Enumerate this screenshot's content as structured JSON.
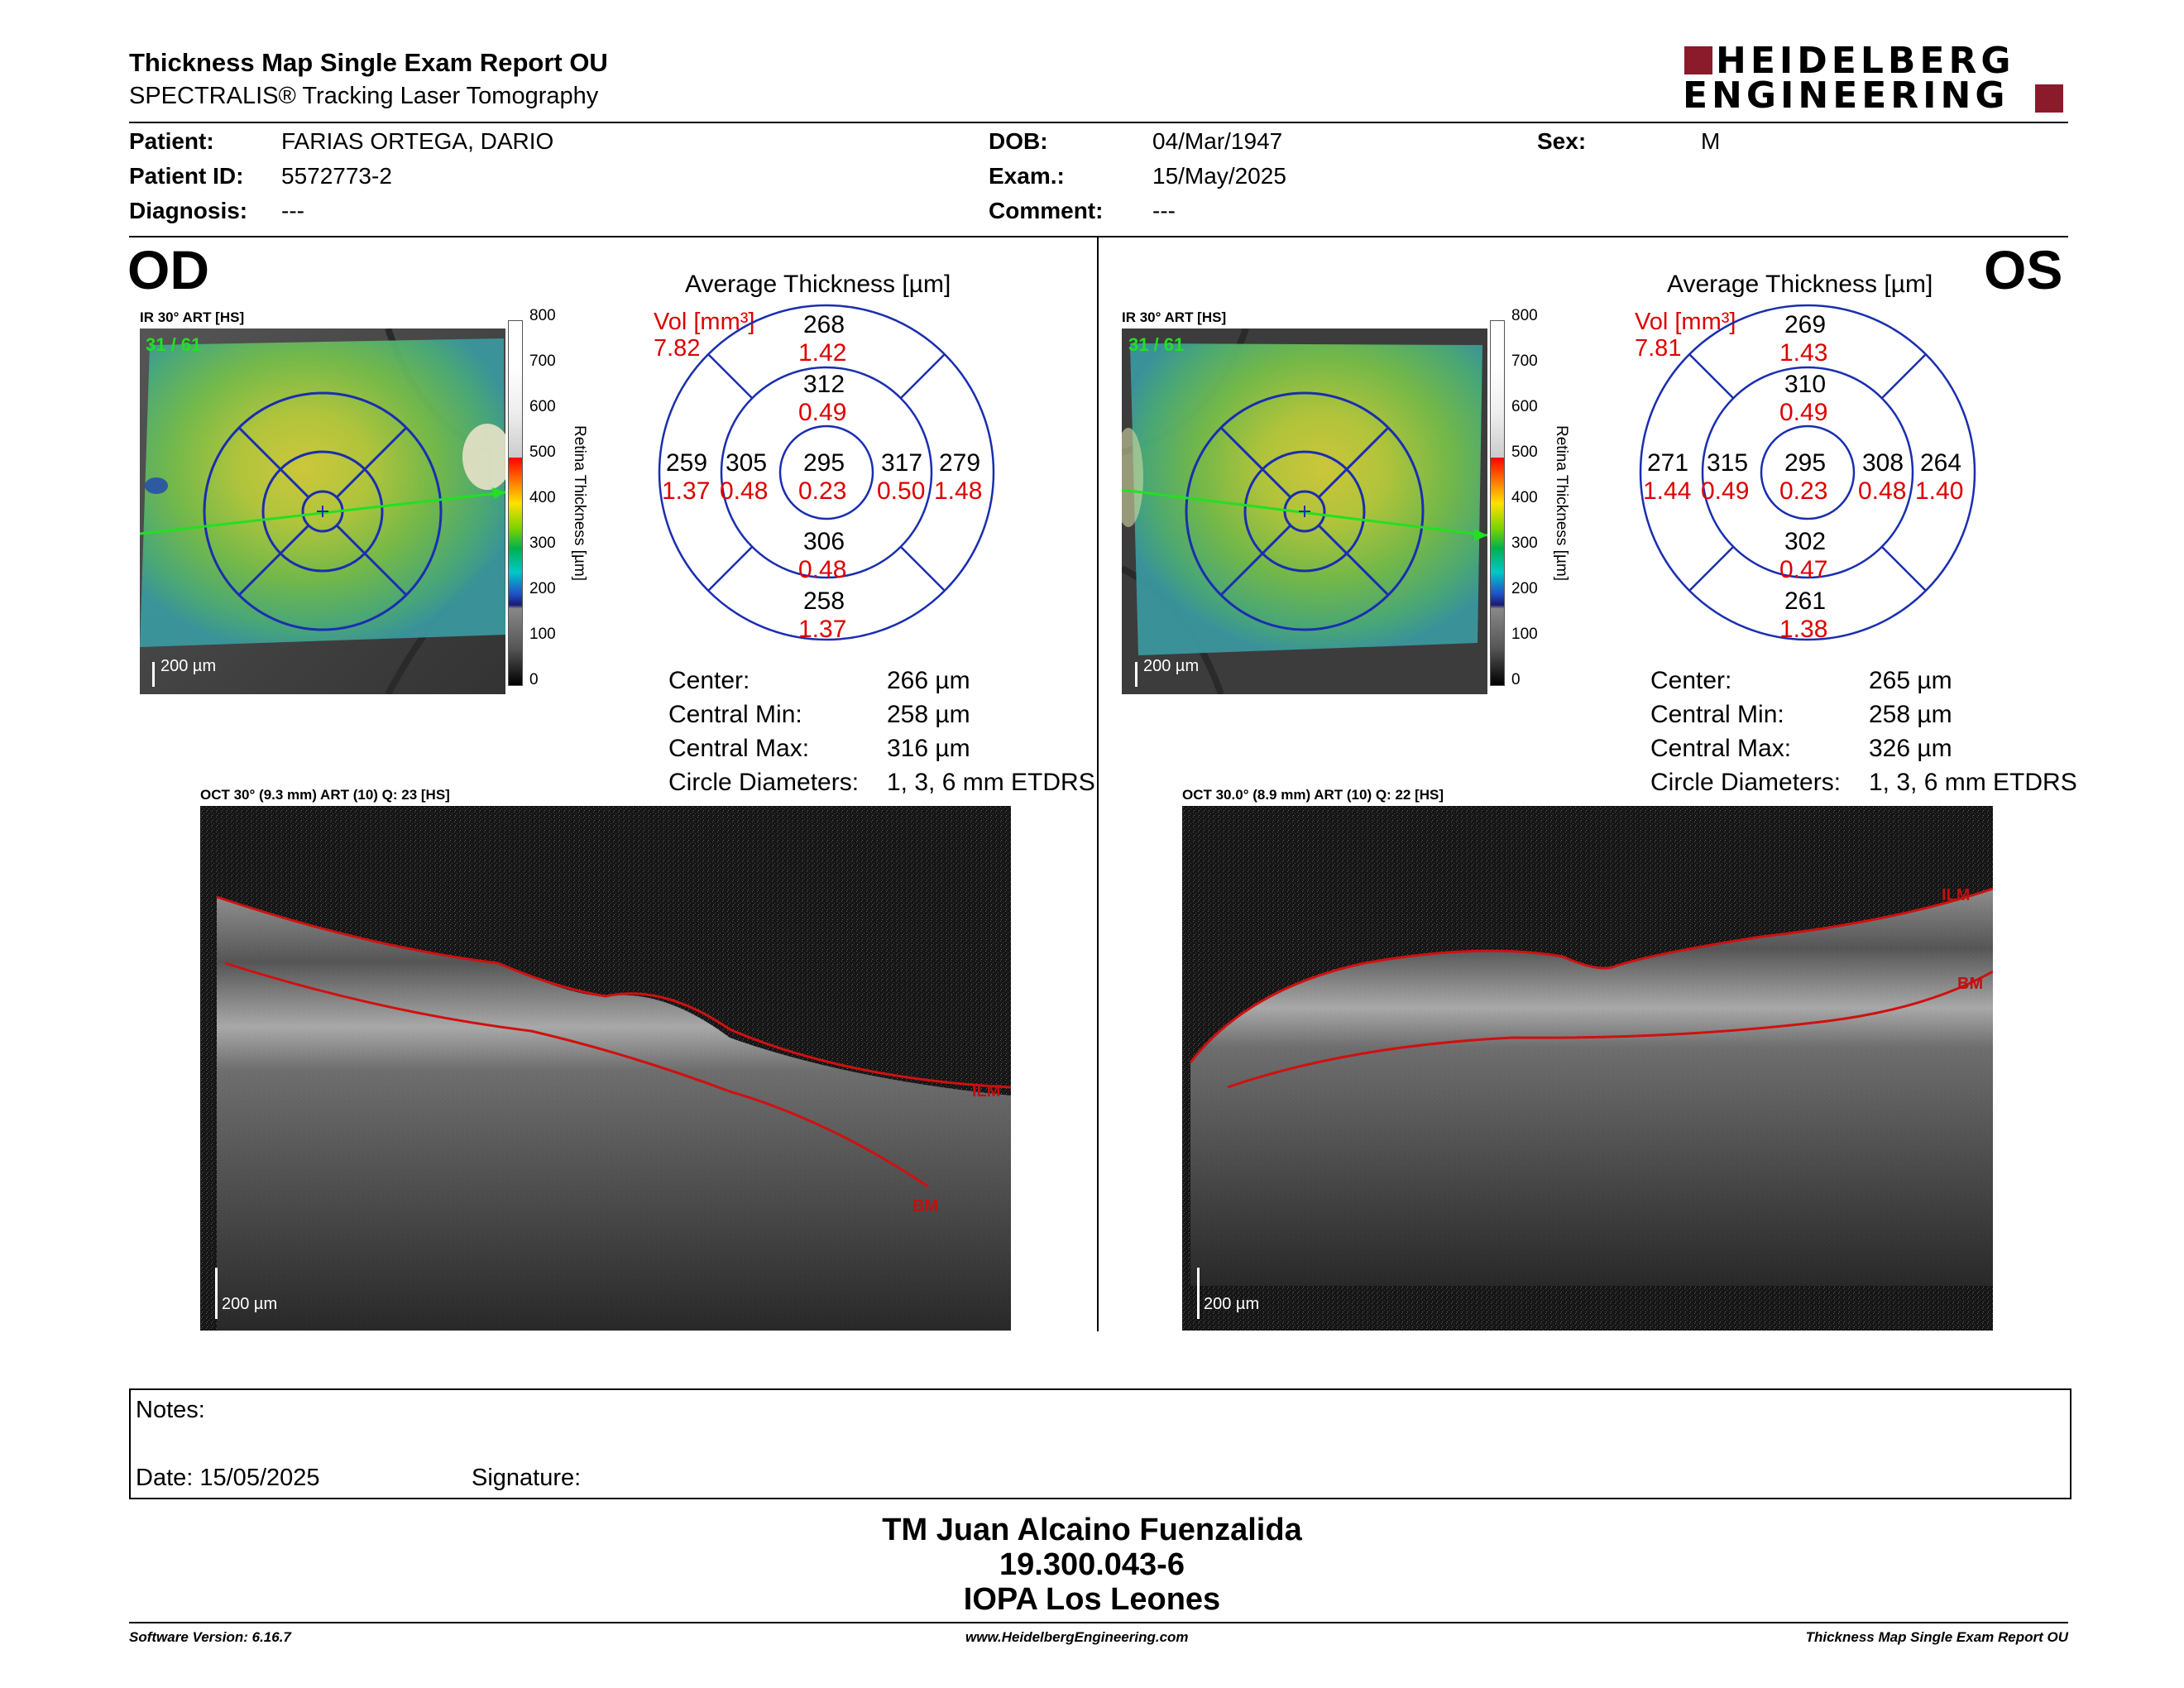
{
  "header": {
    "title": "Thickness Map Single Exam Report OU",
    "subtitle": "SPECTRALIS® Tracking Laser Tomography",
    "brand": {
      "line1": "HEIDELBERG",
      "line2": "ENGINEERING",
      "accent_color": "#8b1a2b"
    }
  },
  "patient": {
    "patient_label": "Patient:",
    "patient_value": "FARIAS ORTEGA, DARIO",
    "id_label": "Patient ID:",
    "id_value": "5572773-2",
    "diagnosis_label": "Diagnosis:",
    "diagnosis_value": "---",
    "dob_label": "DOB:",
    "dob_value": "04/Mar/1947",
    "exam_label": "Exam.:",
    "exam_value": "15/May/2025",
    "comment_label": "Comment:",
    "comment_value": "---",
    "sex_label": "Sex:",
    "sex_value": "M"
  },
  "colorbar": {
    "ticks": [
      "800",
      "700",
      "600",
      "500",
      "400",
      "300",
      "200",
      "100",
      "0"
    ],
    "label": "Retina Thickness [µm]"
  },
  "od": {
    "eye": "OD",
    "ir_caption": "IR 30° ART [HS]",
    "ir_frames": "31 / 61",
    "ir_scale": "200 µm",
    "avg_title": "Average Thickness [µm]",
    "vol_label": "Vol [mm³]",
    "vol_value": "7.82",
    "sectors": {
      "center": [
        "295",
        "0.23"
      ],
      "inner_sup": [
        "312",
        "0.49"
      ],
      "inner_inf": [
        "306",
        "0.48"
      ],
      "inner_left": [
        "305",
        "0.48"
      ],
      "inner_right": [
        "317",
        "0.50"
      ],
      "outer_sup": [
        "268",
        "1.42"
      ],
      "outer_inf": [
        "258",
        "1.37"
      ],
      "outer_left": [
        "259",
        "1.37"
      ],
      "outer_right": [
        "279",
        "1.48"
      ]
    },
    "stats": [
      [
        "Center:",
        "266 µm"
      ],
      [
        "Central Min:",
        "258 µm"
      ],
      [
        "Central Max:",
        "316 µm"
      ],
      [
        "Circle Diameters:",
        "1, 3, 6 mm ETDRS"
      ]
    ],
    "oct_caption": "OCT 30° (9.3 mm) ART (10) Q: 23 [HS]",
    "oct_scale": "200 µm",
    "ilm": "ILM",
    "bm": "BM"
  },
  "os": {
    "eye": "OS",
    "ir_caption": "IR 30° ART [HS]",
    "ir_frames": "31 / 61",
    "ir_scale": "200 µm",
    "avg_title": "Average Thickness [µm]",
    "vol_label": "Vol [mm³]",
    "vol_value": "7.81",
    "sectors": {
      "center": [
        "295",
        "0.23"
      ],
      "inner_sup": [
        "310",
        "0.49"
      ],
      "inner_inf": [
        "302",
        "0.47"
      ],
      "inner_left": [
        "315",
        "0.49"
      ],
      "inner_right": [
        "308",
        "0.48"
      ],
      "outer_sup": [
        "269",
        "1.43"
      ],
      "outer_inf": [
        "261",
        "1.38"
      ],
      "outer_left": [
        "271",
        "1.44"
      ],
      "outer_right": [
        "264",
        "1.40"
      ]
    },
    "stats": [
      [
        "Center:",
        "265 µm"
      ],
      [
        "Central Min:",
        "258 µm"
      ],
      [
        "Central Max:",
        "326 µm"
      ],
      [
        "Circle Diameters:",
        "1, 3, 6 mm ETDRS"
      ]
    ],
    "oct_caption": "OCT 30.0° (8.9 mm) ART (10) Q: 22 [HS]",
    "oct_scale": "200 µm",
    "ilm": "ILM",
    "bm": "BM"
  },
  "notes": {
    "notes_label": "Notes:",
    "date_label": "Date: 15/05/2025",
    "signature_label": "Signature:"
  },
  "signer": {
    "name": "TM Juan Alcaino Fuenzalida",
    "rut": "19.300.043-6",
    "org": "IOPA Los Leones"
  },
  "footer": {
    "version": "Software Version: 6.16.7",
    "website": "www.HeidelbergEngineering.com",
    "report": "Thickness Map Single Exam Report OU"
  }
}
